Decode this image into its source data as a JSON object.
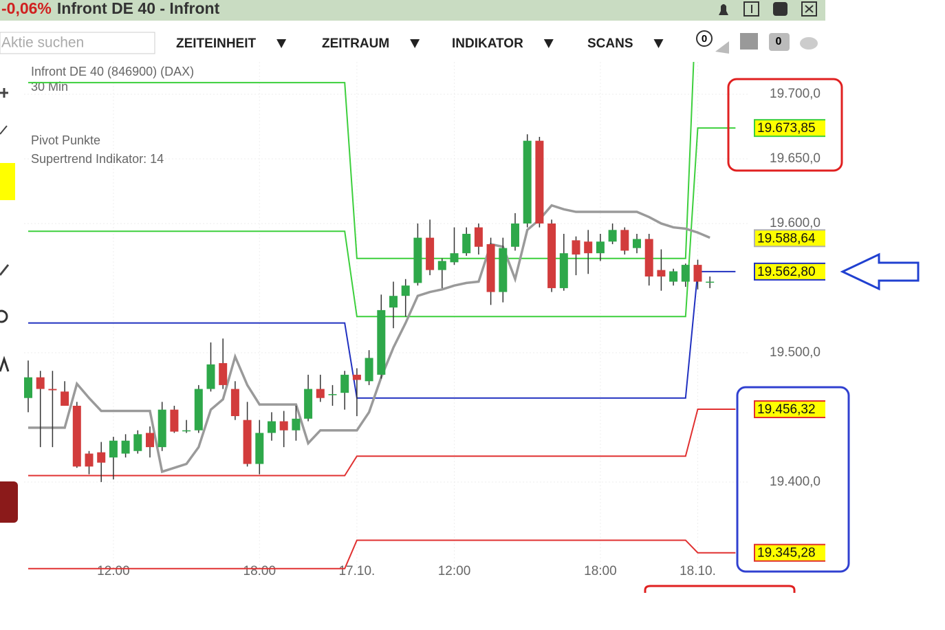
{
  "header": {
    "change": "-0,06%",
    "title": "Infront DE 40 - Infront"
  },
  "toolbar": {
    "search_placeholder": "Aktie suchen",
    "menus": [
      "ZEITEINHEIT",
      "ZEITRAUM",
      "INDIKATOR",
      "SCANS"
    ],
    "badges": [
      "0",
      "0"
    ]
  },
  "chart_data": {
    "type": "candlestick",
    "title": "Infront DE 40 (846900) (DAX)",
    "subtitle": "30 Min",
    "categories": [
      null,
      null,
      null,
      null,
      null,
      null,
      null,
      "12:00",
      null,
      null,
      null,
      null,
      null,
      null,
      null,
      null,
      null,
      null,
      null,
      "18:00",
      null,
      null,
      null,
      null,
      null,
      null,
      null,
      "17.10.",
      null,
      null,
      null,
      null,
      null,
      null,
      null,
      "12:00",
      null,
      null,
      null,
      null,
      null,
      null,
      null,
      null,
      null,
      null,
      null,
      "18:00",
      null,
      null,
      null,
      null,
      null,
      null,
      null,
      "18.10.",
      null
    ],
    "open": [
      19465,
      19481,
      19472,
      19470,
      19459,
      19422,
      19423,
      19419,
      19422,
      19424,
      19438,
      19427,
      19456,
      19440,
      19440,
      19472,
      19492,
      19472,
      19448,
      19414,
      19438,
      19447,
      19440,
      19449,
      19472,
      19468,
      19469,
      19483,
      19478,
      19483,
      19535,
      19544,
      19554,
      19589,
      19564,
      19570,
      19577,
      19597,
      19584,
      19547,
      19582,
      19600,
      19664,
      19600,
      19550,
      19587,
      19586,
      19577,
      19586,
      19595,
      19581,
      19588,
      19564,
      19555,
      19555,
      19568,
      19555
    ],
    "high": [
      19494,
      19486,
      19486,
      19478,
      19462,
      19424,
      19431,
      19435,
      19437,
      19440,
      19443,
      19462,
      19459,
      19448,
      19475,
      19508,
      19511,
      19478,
      19462,
      19448,
      19454,
      19455,
      19459,
      19483,
      19483,
      19475,
      19486,
      19488,
      19502,
      19545,
      19555,
      19557,
      19600,
      19603,
      19573,
      19597,
      19597,
      19600,
      19589,
      19589,
      19608,
      19669,
      19667,
      19603,
      19592,
      19590,
      19595,
      19592,
      19600,
      19597,
      19592,
      19592,
      19580,
      19565,
      19569,
      19572,
      19559
    ],
    "low": [
      19454,
      19427,
      19427,
      19459,
      19411,
      19406,
      19400,
      19402,
      19419,
      19422,
      19419,
      19424,
      19438,
      19438,
      19438,
      19470,
      19472,
      19448,
      19412,
      19406,
      19432,
      19427,
      19432,
      19447,
      19462,
      19459,
      19456,
      19451,
      19475,
      19480,
      19519,
      19528,
      19552,
      19560,
      19550,
      19568,
      19575,
      19576,
      19537,
      19539,
      19579,
      19597,
      19597,
      19547,
      19548,
      19560,
      19561,
      19571,
      19584,
      19576,
      19577,
      19552,
      19548,
      19552,
      19551,
      19549,
      19550
    ],
    "close": [
      19481,
      19472,
      19471,
      19459,
      19412,
      19412,
      19415,
      19432,
      19432,
      19437,
      19427,
      19456,
      19439,
      19440,
      19472,
      19491,
      19475,
      19451,
      19414,
      19438,
      19447,
      19440,
      19449,
      19472,
      19465,
      19468,
      19483,
      19479,
      19496,
      19533,
      19544,
      19552,
      19589,
      19564,
      19571,
      19577,
      19592,
      19582,
      19547,
      19581,
      19600,
      19664,
      19600,
      19550,
      19577,
      19576,
      19577,
      19586,
      19595,
      19579,
      19588,
      19559,
      19559,
      19563,
      19568,
      19555,
      19555
    ],
    "up_color": "#2ea84a",
    "down_color": "#d23c3c",
    "series": [
      {
        "name": "Supertrend Indikator: 14",
        "color": "#9a9a9a",
        "values": [
          19442,
          19442,
          19442,
          19442,
          19476,
          19465,
          19455,
          19455,
          19455,
          19455,
          19455,
          19408,
          19411,
          19414,
          19427,
          19456,
          19464,
          19497,
          19475,
          19460,
          19460,
          19460,
          19460,
          19430,
          19440,
          19440,
          19440,
          19440,
          19454,
          19481,
          19504,
          19523,
          19544,
          19547,
          19549,
          19552,
          19554,
          19555,
          19584,
          19582,
          19557,
          19595,
          19603,
          19614,
          19611,
          19609,
          19609,
          19609,
          19609,
          19609,
          19609,
          19605,
          19600,
          19597,
          19596,
          19593,
          19589
        ]
      }
    ],
    "pivots": {
      "name": "Pivot Punkte",
      "lines": [
        {
          "color": "#3ccf3c",
          "values": [
            19709,
            19573,
            null
          ]
        },
        {
          "color": "#3ccf3c",
          "values": [
            19594,
            19528,
            19673.85
          ]
        },
        {
          "color": "#2030c0",
          "values": [
            19523,
            19465,
            19562.8
          ]
        },
        {
          "color": "#e03030",
          "values": [
            19405,
            19420,
            19456.32
          ]
        },
        {
          "color": "#e03030",
          "values": [
            19333,
            19355,
            19345.28
          ]
        }
      ]
    },
    "price_labels": [
      {
        "value": 19673.85,
        "label": "19.673,85",
        "color": "#3ccf3c"
      },
      {
        "value": 19588.64,
        "label": "19.588,64",
        "color": "#b0b0b0"
      },
      {
        "value": 19562.8,
        "label": "19.562,80",
        "color": "#2030c0"
      },
      {
        "value": 19456.32,
        "label": "19.456,32",
        "color": "#e03030"
      },
      {
        "value": 19345.28,
        "label": "19.345,28",
        "color": "#e03030"
      }
    ],
    "ylim": [
      19318,
      19725
    ],
    "yticks": [
      {
        "value": 19700,
        "label": "19.700,0"
      },
      {
        "value": 19650,
        "label": "19.650,0"
      },
      {
        "value": 19600,
        "label": "19.600,0"
      },
      {
        "value": 19500,
        "label": "19.500,0"
      },
      {
        "value": 19400,
        "label": "19.400,0"
      }
    ],
    "grid": true
  }
}
